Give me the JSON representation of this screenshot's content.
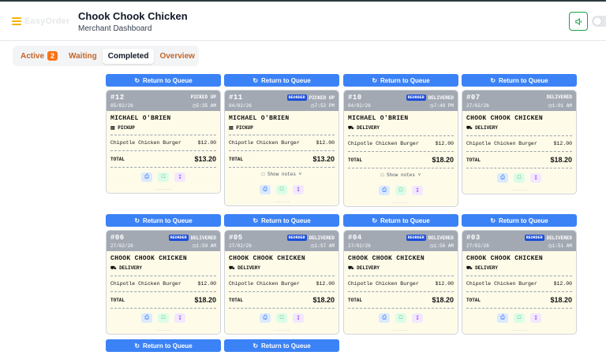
{
  "header": {
    "logo_text": "EasyOrder",
    "title": "Chook Chook Chicken",
    "subtitle": "Merchant Dashboard"
  },
  "tabs": [
    {
      "label": "Active",
      "count": "2"
    },
    {
      "label": "Waiting"
    },
    {
      "label": "Completed"
    },
    {
      "label": "Overview"
    }
  ],
  "return_label": "Return to Queue",
  "reorder_label": "REORDER",
  "total_label": "TOTAL",
  "show_notes_label": "Show notes",
  "orders": [
    {
      "num": "#12",
      "date": "05/02/26",
      "time": "5:35 AM",
      "status": "PICKED UP",
      "reorder": false,
      "customer": "MICHAEL O'BRIEN",
      "method": "PICKUP",
      "item": "Chipotle Chicken Burger",
      "price": "$12.00",
      "total": "$13.20",
      "notes": false
    },
    {
      "num": "#11",
      "date": "04/02/26",
      "time": "7:52 PM",
      "status": "PICKED UP",
      "reorder": true,
      "customer": "MICHAEL O'BRIEN",
      "method": "PICKUP",
      "item": "Chipotle Chicken Burger",
      "price": "$12.00",
      "total": "$13.20",
      "notes": true
    },
    {
      "num": "#10",
      "date": "04/02/26",
      "time": "7:49 PM",
      "status": "DELIVERED",
      "reorder": true,
      "customer": "MICHAEL O'BRIEN",
      "method": "DELIVERY",
      "item": "Chipotle Chicken Burger",
      "price": "$12.00",
      "total": "$18.20",
      "notes": true
    },
    {
      "num": "#07",
      "date": "27/02/26",
      "time": "1:01 AM",
      "status": "DELIVERED",
      "reorder": false,
      "customer": "CHOOK CHOOK CHICKEN",
      "method": "DELIVERY",
      "item": "Chipotle Chicken Burger",
      "price": "$12.00",
      "total": "$18.20",
      "notes": false
    },
    {
      "num": "#06",
      "date": "27/02/26",
      "time": "1:59 AM",
      "status": "DELIVERED",
      "reorder": true,
      "customer": "CHOOK CHOOK CHICKEN",
      "method": "DELIVERY",
      "item": "Chipotle Chicken Burger",
      "price": "$12.00",
      "total": "$18.20",
      "notes": false
    },
    {
      "num": "#05",
      "date": "27/02/26",
      "time": "1:57 AM",
      "status": "DELIVERED",
      "reorder": true,
      "customer": "CHOOK CHOOK CHICKEN",
      "method": "DELIVERY",
      "item": "Chipotle Chicken Burger",
      "price": "$12.00",
      "total": "$18.20",
      "notes": false
    },
    {
      "num": "#04",
      "date": "27/02/26",
      "time": "1:56 AM",
      "status": "DELIVERED",
      "reorder": true,
      "customer": "CHOOK CHOOK CHICKEN",
      "method": "DELIVERY",
      "item": "Chipotle Chicken Burger",
      "price": "$12.00",
      "total": "$18.20",
      "notes": false
    },
    {
      "num": "#03",
      "date": "27/02/26",
      "time": "1:51 AM",
      "status": "DELIVERED",
      "reorder": true,
      "customer": "CHOOK CHOOK CHICKEN",
      "method": "DELIVERY",
      "item": "Chipotle Chicken Burger",
      "price": "$12.00",
      "total": "$18.20",
      "notes": false
    }
  ]
}
